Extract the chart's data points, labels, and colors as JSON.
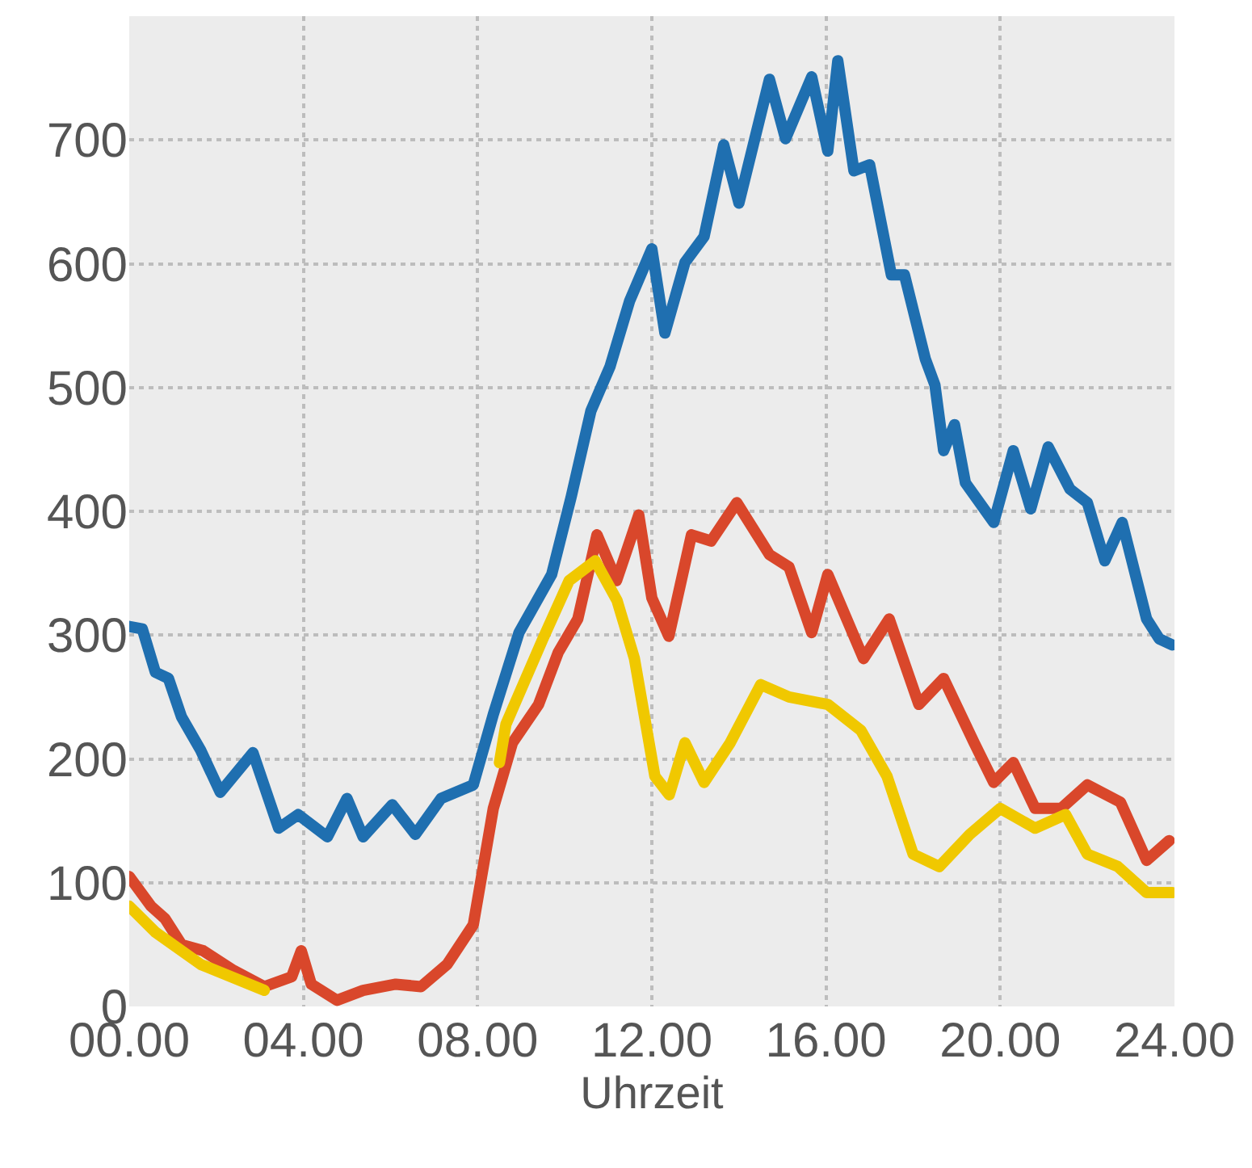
{
  "chart_data": {
    "type": "line",
    "xlabel": "Uhrzeit",
    "xlim": [
      0,
      24
    ],
    "ylim": [
      0,
      800
    ],
    "xticks": [
      {
        "value": 0,
        "label": "00.00"
      },
      {
        "value": 4,
        "label": "04.00"
      },
      {
        "value": 8,
        "label": "08.00"
      },
      {
        "value": 12,
        "label": "12.00"
      },
      {
        "value": 16,
        "label": "16.00"
      },
      {
        "value": 20,
        "label": "20.00"
      },
      {
        "value": 24,
        "label": "24.00"
      }
    ],
    "yticks": [
      0,
      100,
      200,
      300,
      400,
      500,
      600,
      700
    ],
    "grid": true,
    "marker": "none",
    "line_style": "solid",
    "series": [
      {
        "color": "#1f6fb0",
        "x": [
          0,
          0.3,
          0.6,
          0.9,
          1.2,
          1.64,
          2.09,
          2.84,
          3.43,
          3.88,
          4.55,
          5.0,
          5.37,
          6.04,
          6.57,
          7.16,
          7.9,
          8.36,
          8.95,
          9.7,
          10.15,
          10.6,
          11.04,
          11.49,
          12.0,
          12.3,
          12.76,
          13.2,
          13.65,
          14.0,
          14.7,
          15.07,
          15.67,
          16.04,
          16.27,
          16.64,
          17.0,
          17.5,
          17.8,
          18.28,
          18.5,
          18.7,
          18.95,
          19.2,
          19.85,
          20.3,
          20.7,
          21.1,
          21.6,
          22.0,
          22.4,
          22.8,
          23.36,
          23.65,
          23.95
        ],
        "values": [
          307,
          305,
          270,
          265,
          234,
          207,
          173,
          205,
          144,
          155,
          137,
          168,
          137,
          163,
          139,
          168,
          179,
          236,
          302,
          349,
          412,
          481,
          517,
          570,
          612,
          544,
          601,
          622,
          696,
          649,
          749,
          701,
          751,
          691,
          764,
          675,
          680,
          591,
          591,
          523,
          502,
          449,
          470,
          423,
          391,
          449,
          402,
          452,
          418,
          407,
          360,
          391,
          313,
          297,
          292
        ]
      },
      {
        "color": "#d9472b",
        "x": [
          0,
          0.5,
          0.82,
          1.2,
          1.7,
          2.4,
          3.1,
          3.73,
          3.95,
          4.18,
          4.77,
          5.37,
          6.12,
          6.7,
          7.3,
          7.9,
          8.36,
          8.8,
          9.4,
          9.85,
          10.3,
          10.74,
          11.19,
          11.7,
          12.0,
          12.39,
          12.91,
          13.36,
          13.95,
          14.7,
          15.15,
          15.67,
          16.04,
          16.86,
          17.45,
          18.13,
          18.7,
          19.4,
          19.85,
          20.3,
          20.8,
          21.4,
          22.0,
          22.76,
          23.36,
          23.88
        ],
        "values": [
          105,
          81,
          71,
          50,
          45,
          29,
          16,
          24,
          45,
          18,
          5,
          13,
          18,
          16,
          34,
          66,
          160,
          213,
          244,
          286,
          313,
          381,
          344,
          397,
          330,
          299,
          381,
          376,
          407,
          365,
          355,
          302,
          349,
          281,
          313,
          244,
          265,
          213,
          181,
          197,
          160,
          160,
          179,
          165,
          118,
          134
        ]
      },
      {
        "color": "#f0c800",
        "x": [
          0,
          0.6,
          1.64,
          3.1,
          5.5,
          8.5,
          8.65,
          9.5,
          10.1,
          10.7,
          11.2,
          11.6,
          12.07,
          12.4,
          12.76,
          13.2,
          13.8,
          14.5,
          15.15,
          16.04,
          16.8,
          17.4,
          18.0,
          18.6,
          19.3,
          20.0,
          20.8,
          21.5,
          22.0,
          22.7,
          23.36,
          23.95
        ],
        "values": [
          81,
          60,
          34,
          13,
          null,
          197,
          228,
          297,
          344,
          360,
          328,
          281,
          186,
          171,
          213,
          181,
          213,
          260,
          250,
          244,
          223,
          186,
          123,
          113,
          139,
          160,
          144,
          155,
          123,
          113,
          92,
          92
        ]
      }
    ]
  }
}
